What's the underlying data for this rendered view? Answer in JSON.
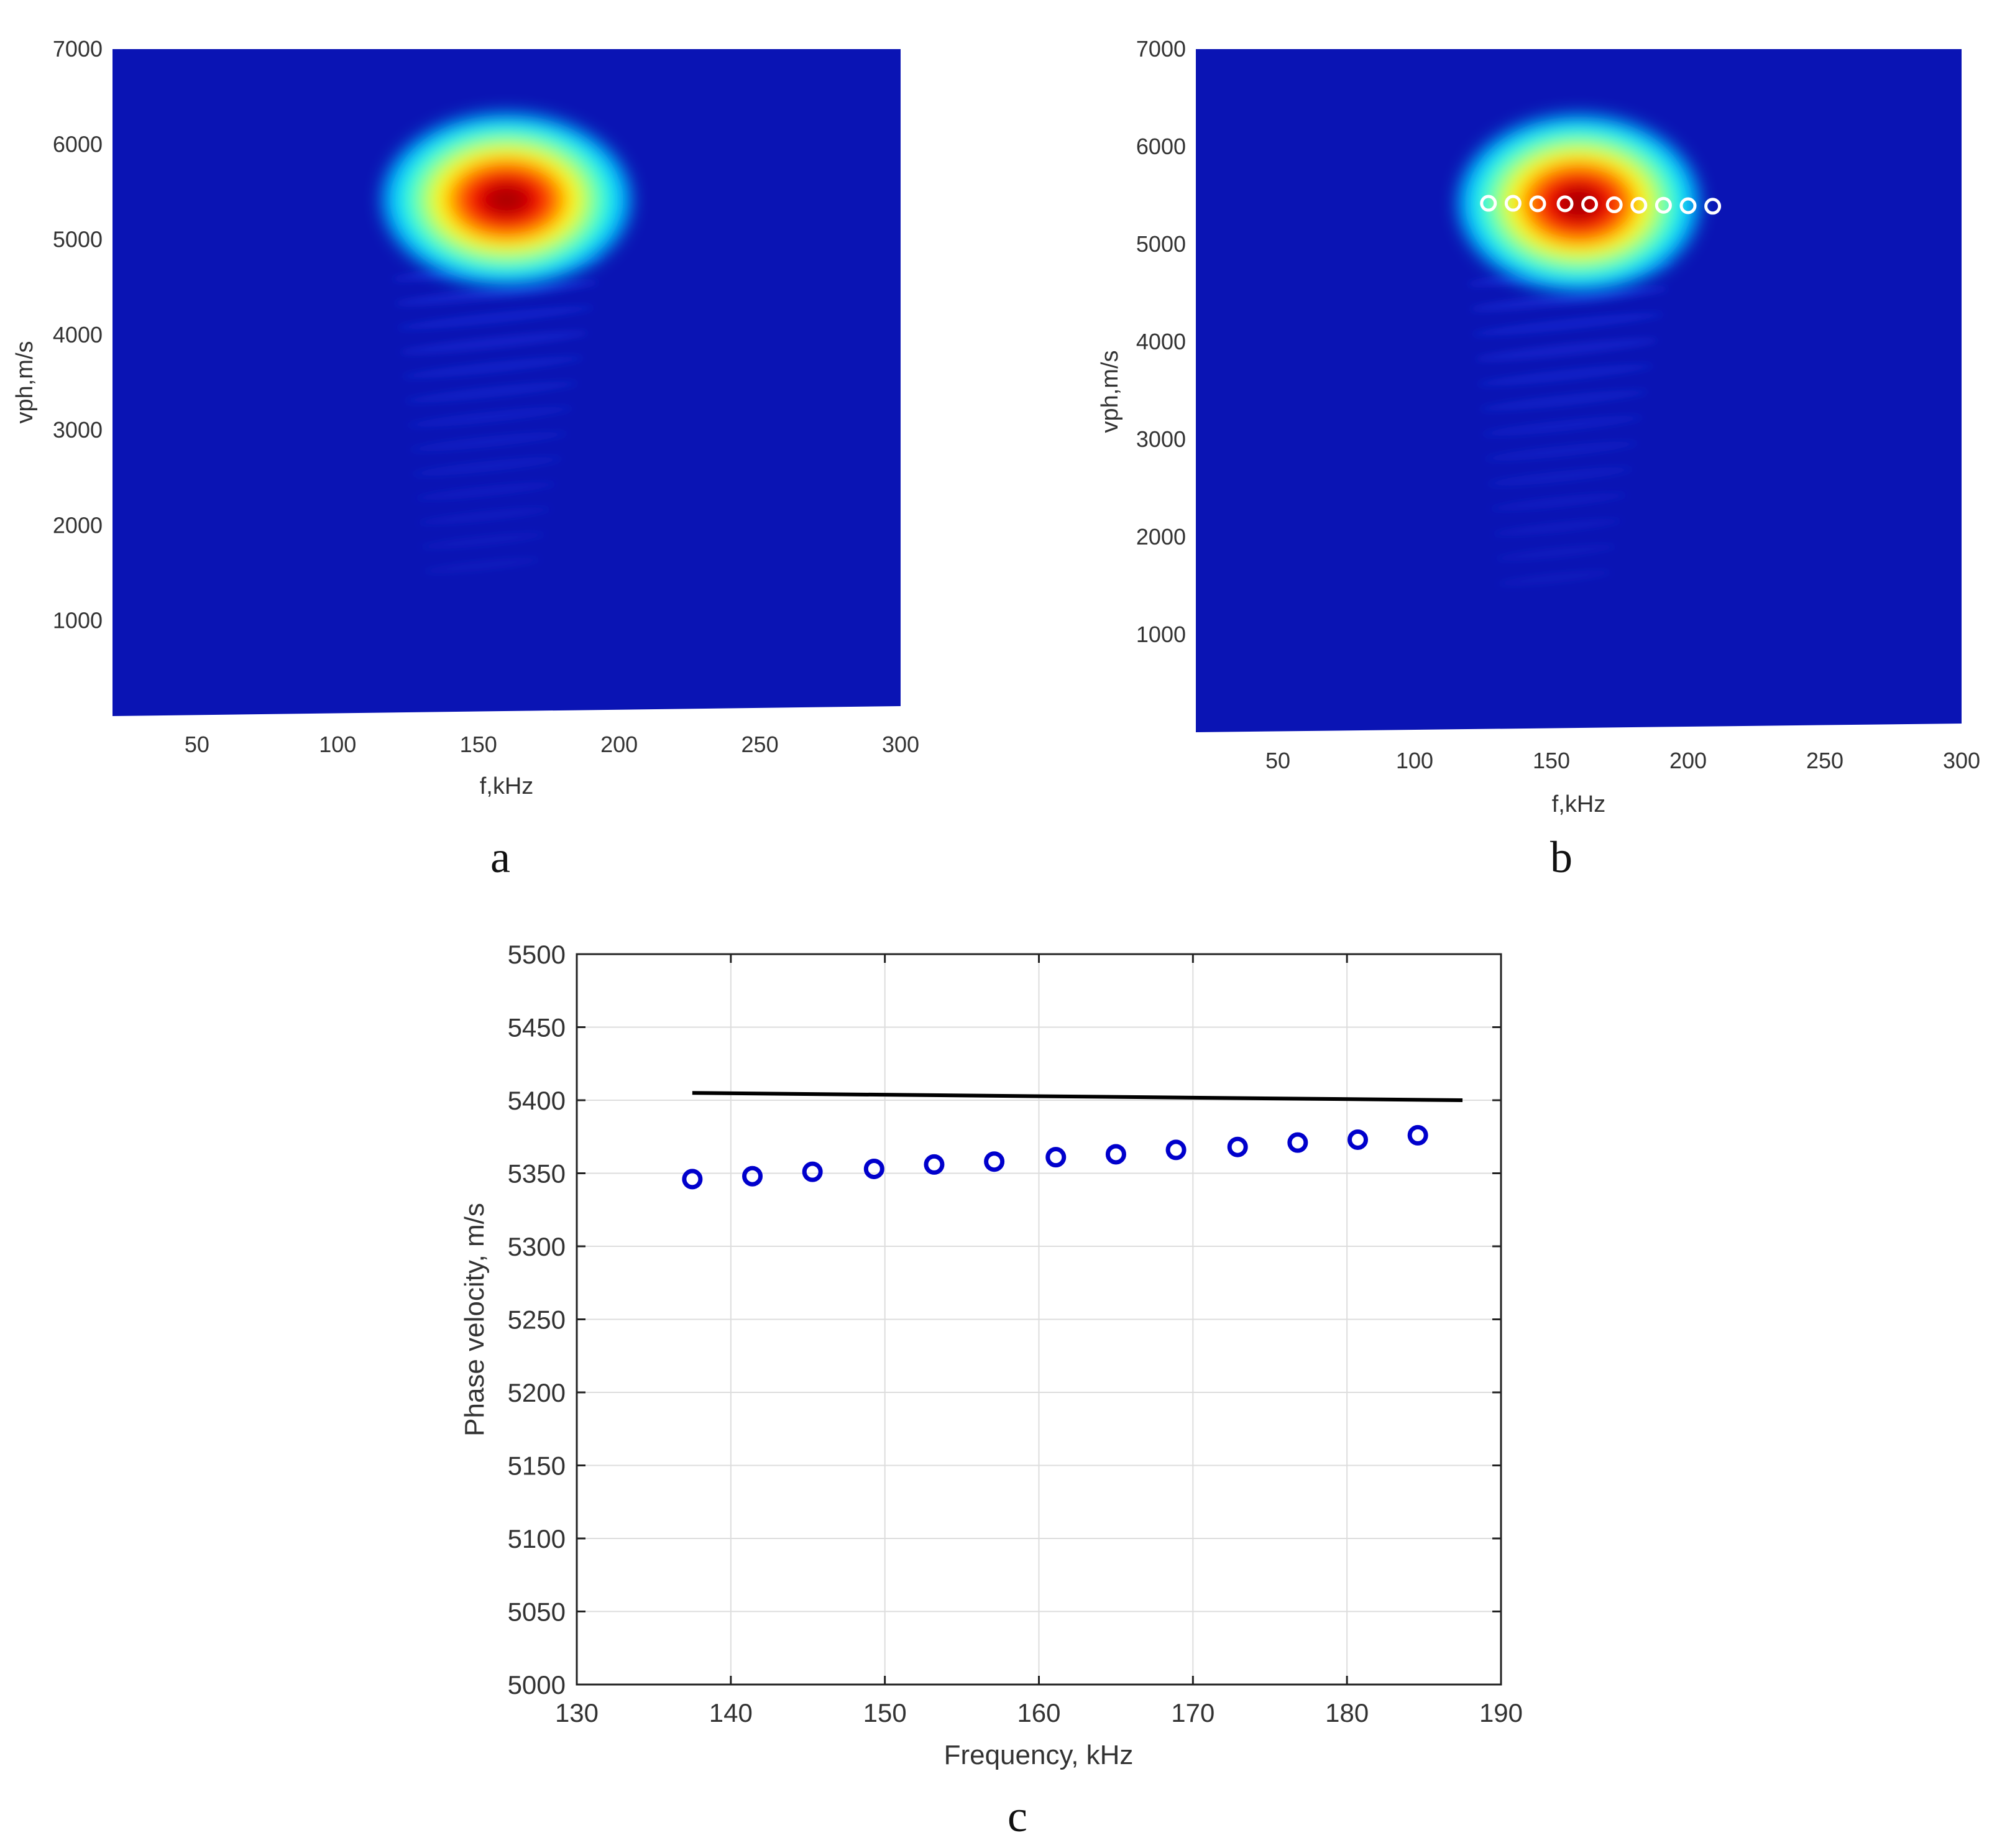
{
  "panels": [
    {
      "label": "a"
    },
    {
      "label": "b"
    },
    {
      "label": "c"
    }
  ],
  "colors": {
    "heatmap_low": "#0a14b4",
    "heatmap_high": "#d00000",
    "markers_b": "#ffffff",
    "markers_c": "#0000cc",
    "line_c": "#000000",
    "grid": "#dddddd"
  },
  "chart_data": [
    {
      "type": "heatmap",
      "panel": "a",
      "colormap": "jet",
      "xlabel": "f,kHz",
      "ylabel": "vph,m/s",
      "xlim": [
        20,
        300
      ],
      "ylim": [
        0,
        7000
      ],
      "xticks": [
        50,
        100,
        150,
        200,
        250,
        300
      ],
      "yticks": [
        1000,
        2000,
        3000,
        4000,
        5000,
        6000,
        7000
      ],
      "peak": {
        "f": 160,
        "vph": 5420
      },
      "spread": {
        "f": 22,
        "vph": 520
      },
      "ripples": {
        "f_center": 157,
        "vph_range": [
          1500,
          4700
        ],
        "f_halfwidth": 38
      }
    },
    {
      "type": "heatmap",
      "panel": "b",
      "colormap": "jet",
      "xlabel": "f,kHz",
      "ylabel": "vph,m/s",
      "xlim": [
        20,
        300
      ],
      "ylim": [
        0,
        7000
      ],
      "xticks": [
        50,
        100,
        150,
        200,
        250,
        300
      ],
      "yticks": [
        1000,
        2000,
        3000,
        4000,
        5000,
        6000,
        7000
      ],
      "peak": {
        "f": 160,
        "vph": 5420
      },
      "spread": {
        "f": 22,
        "vph": 520
      },
      "ripples": {
        "f_center": 157,
        "vph_range": [
          1500,
          4700
        ],
        "f_halfwidth": 38
      },
      "markers": {
        "x": [
          127,
          136,
          145,
          155,
          164,
          173,
          182,
          191,
          200,
          209
        ],
        "y": [
          5420,
          5420,
          5415,
          5415,
          5410,
          5405,
          5400,
          5400,
          5395,
          5390
        ]
      }
    },
    {
      "type": "scatter",
      "panel": "c",
      "xlabel": "Frequency, kHz",
      "ylabel": "Phase velocity, m/s",
      "xlim": [
        130,
        190
      ],
      "ylim": [
        5000,
        5500
      ],
      "xticks": [
        130,
        140,
        150,
        160,
        170,
        180,
        190
      ],
      "yticks": [
        5000,
        5050,
        5100,
        5150,
        5200,
        5250,
        5300,
        5350,
        5400,
        5450,
        5500
      ],
      "grid": true,
      "series": [
        {
          "style": "markers",
          "x": [
            137.5,
            141.4,
            145.3,
            149.3,
            153.2,
            157.1,
            161.1,
            165.0,
            168.9,
            172.9,
            176.8,
            180.7,
            184.6
          ],
          "y": [
            5346,
            5348,
            5351,
            5353,
            5356,
            5358,
            5361,
            5363,
            5366,
            5368,
            5371,
            5373,
            5376
          ]
        },
        {
          "style": "line",
          "x": [
            137.5,
            187.5
          ],
          "y": [
            5405,
            5400
          ]
        }
      ]
    }
  ]
}
